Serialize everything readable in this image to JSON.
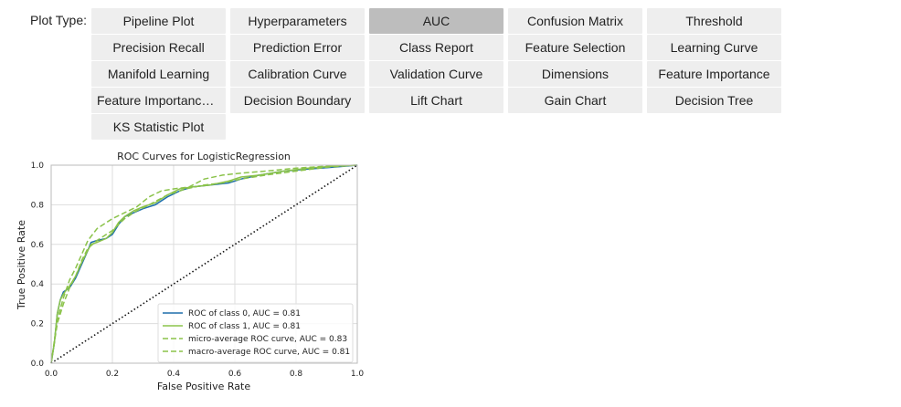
{
  "toolbar": {
    "label": "Plot Type:",
    "active": "AUC",
    "buttons": [
      [
        "Pipeline Plot",
        "Hyperparameters",
        "AUC",
        "Confusion Matrix",
        "Threshold"
      ],
      [
        "Precision Recall",
        "Prediction Error",
        "Class Report",
        "Feature Selection",
        "Learning Curve"
      ],
      [
        "Manifold Learning",
        "Calibration Curve",
        "Validation Curve",
        "Dimensions",
        "Feature Importance"
      ],
      [
        "Feature Importance (All)",
        "Decision Boundary",
        "Lift Chart",
        "Gain Chart",
        "Decision Tree"
      ],
      [
        "KS Statistic Plot"
      ]
    ]
  },
  "chart_data": {
    "type": "line",
    "title": "ROC Curves for LogisticRegression",
    "xlabel": "False Positive Rate",
    "ylabel": "True Positive Rate",
    "xlim": [
      0,
      1
    ],
    "ylim": [
      0,
      1
    ],
    "xticks": [
      "0.0",
      "0.2",
      "0.4",
      "0.6",
      "0.8",
      "1.0"
    ],
    "yticks": [
      "0.0",
      "0.2",
      "0.4",
      "0.6",
      "0.8",
      "1.0"
    ],
    "grid": true,
    "legend_position": "lower-right",
    "series": [
      {
        "name": "ROC of class 0, AUC = 0.81",
        "color": "#1f6fab",
        "dash": "solid",
        "points": [
          [
            0,
            0
          ],
          [
            0.01,
            0.1
          ],
          [
            0.02,
            0.25
          ],
          [
            0.03,
            0.32
          ],
          [
            0.04,
            0.36
          ],
          [
            0.06,
            0.38
          ],
          [
            0.08,
            0.43
          ],
          [
            0.1,
            0.5
          ],
          [
            0.12,
            0.57
          ],
          [
            0.13,
            0.61
          ],
          [
            0.15,
            0.62
          ],
          [
            0.18,
            0.63
          ],
          [
            0.2,
            0.65
          ],
          [
            0.22,
            0.7
          ],
          [
            0.24,
            0.74
          ],
          [
            0.27,
            0.76
          ],
          [
            0.3,
            0.78
          ],
          [
            0.34,
            0.8
          ],
          [
            0.38,
            0.84
          ],
          [
            0.42,
            0.87
          ],
          [
            0.46,
            0.89
          ],
          [
            0.52,
            0.9
          ],
          [
            0.58,
            0.91
          ],
          [
            0.62,
            0.93
          ],
          [
            0.68,
            0.95
          ],
          [
            0.76,
            0.97
          ],
          [
            0.84,
            0.98
          ],
          [
            0.92,
            0.99
          ],
          [
            1,
            1
          ]
        ]
      },
      {
        "name": "ROC of class 1, AUC = 0.81",
        "color": "#8bc34a",
        "dash": "solid",
        "points": [
          [
            0,
            0
          ],
          [
            0.01,
            0.1
          ],
          [
            0.02,
            0.25
          ],
          [
            0.03,
            0.32
          ],
          [
            0.04,
            0.35
          ],
          [
            0.06,
            0.39
          ],
          [
            0.08,
            0.44
          ],
          [
            0.1,
            0.51
          ],
          [
            0.12,
            0.57
          ],
          [
            0.13,
            0.6
          ],
          [
            0.15,
            0.61
          ],
          [
            0.18,
            0.63
          ],
          [
            0.2,
            0.66
          ],
          [
            0.22,
            0.71
          ],
          [
            0.24,
            0.74
          ],
          [
            0.27,
            0.77
          ],
          [
            0.3,
            0.79
          ],
          [
            0.34,
            0.81
          ],
          [
            0.38,
            0.85
          ],
          [
            0.42,
            0.88
          ],
          [
            0.46,
            0.89
          ],
          [
            0.52,
            0.9
          ],
          [
            0.58,
            0.92
          ],
          [
            0.62,
            0.94
          ],
          [
            0.68,
            0.95
          ],
          [
            0.76,
            0.97
          ],
          [
            0.84,
            0.985
          ],
          [
            0.92,
            0.995
          ],
          [
            1,
            1
          ]
        ]
      },
      {
        "name": "micro-average ROC curve, AUC = 0.83",
        "color": "#8bc34a",
        "dash": "dashed",
        "points": [
          [
            0,
            0
          ],
          [
            0.02,
            0.22
          ],
          [
            0.04,
            0.33
          ],
          [
            0.06,
            0.42
          ],
          [
            0.08,
            0.48
          ],
          [
            0.1,
            0.55
          ],
          [
            0.12,
            0.62
          ],
          [
            0.15,
            0.68
          ],
          [
            0.18,
            0.71
          ],
          [
            0.2,
            0.73
          ],
          [
            0.24,
            0.76
          ],
          [
            0.28,
            0.79
          ],
          [
            0.32,
            0.84
          ],
          [
            0.36,
            0.87
          ],
          [
            0.4,
            0.88
          ],
          [
            0.45,
            0.89
          ],
          [
            0.5,
            0.93
          ],
          [
            0.56,
            0.95
          ],
          [
            0.62,
            0.96
          ],
          [
            0.7,
            0.97
          ],
          [
            0.8,
            0.985
          ],
          [
            0.9,
            0.995
          ],
          [
            1,
            1
          ]
        ]
      },
      {
        "name": "macro-average ROC curve, AUC = 0.81",
        "color": "#8bc34a",
        "dash": "dashed",
        "points": [
          [
            0,
            0
          ],
          [
            0.02,
            0.2
          ],
          [
            0.04,
            0.3
          ],
          [
            0.06,
            0.38
          ],
          [
            0.08,
            0.44
          ],
          [
            0.1,
            0.52
          ],
          [
            0.12,
            0.58
          ],
          [
            0.15,
            0.62
          ],
          [
            0.18,
            0.65
          ],
          [
            0.2,
            0.67
          ],
          [
            0.24,
            0.73
          ],
          [
            0.28,
            0.77
          ],
          [
            0.32,
            0.8
          ],
          [
            0.38,
            0.85
          ],
          [
            0.44,
            0.88
          ],
          [
            0.5,
            0.9
          ],
          [
            0.56,
            0.91
          ],
          [
            0.62,
            0.93
          ],
          [
            0.7,
            0.95
          ],
          [
            0.8,
            0.97
          ],
          [
            0.9,
            0.99
          ],
          [
            1,
            1
          ]
        ]
      },
      {
        "name": "",
        "color": "#111111",
        "dash": "dotted",
        "points": [
          [
            0,
            0
          ],
          [
            1,
            1
          ]
        ]
      }
    ]
  }
}
